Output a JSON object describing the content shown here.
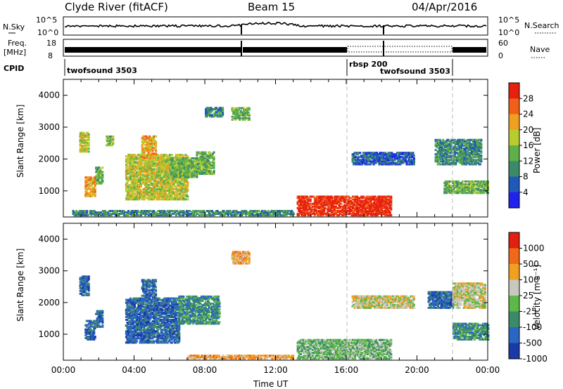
{
  "header": {
    "station": "Clyde River (fitACF)",
    "beam": "Beam 15",
    "date": "04/Apr/2016"
  },
  "top_panels": {
    "nsky_label": "N.Sky",
    "nsearch_label": "N.Search",
    "freq_label_1": "Freq.",
    "freq_label_2": "[MHz]",
    "nave_label": "Nave",
    "cpid_label": "CPID",
    "nsky_ticks": [
      "10^5",
      "10^0"
    ],
    "nsearch_ticks": [
      "10^5",
      "10^0"
    ],
    "freq_ticks": [
      "18",
      "8"
    ],
    "nave_ticks": [
      "60",
      "0"
    ]
  },
  "cpid_segments": [
    {
      "label": "twofsound 3503",
      "start_hour": 0
    },
    {
      "label": "rbsp 200",
      "start_hour": 16
    },
    {
      "label": "twofsound 3503",
      "start_hour": 18
    }
  ],
  "colors": {
    "power_scale": [
      "#2222ee",
      "#1f5ab8",
      "#3c8a6a",
      "#5fb04a",
      "#b8cc30",
      "#f0a020",
      "#f06018",
      "#e82010"
    ],
    "velocity_scale": [
      "#1a3aa8",
      "#2a66c4",
      "#3d8a6a",
      "#5cb848",
      "#c8c8c0",
      "#f0a020",
      "#f06818",
      "#e02010"
    ]
  },
  "chart_data": [
    {
      "type": "heatmap",
      "panel": "power",
      "ylabel": "Slant Range [km]",
      "ylim": [
        180,
        4500
      ],
      "yticks": [
        "1000",
        "2000",
        "3000",
        "4000"
      ],
      "xlim_hours": [
        0,
        24
      ],
      "colorbar_label": "Power [dB]",
      "colorbar_ticks": [
        "4",
        "8",
        "12",
        "16",
        "20",
        "24",
        "28"
      ],
      "regions": [
        {
          "t0": 0.9,
          "t1": 1.4,
          "r0": 2200,
          "r1": 2800,
          "level": 4
        },
        {
          "t0": 1.2,
          "t1": 1.8,
          "r0": 800,
          "r1": 1400,
          "level": 5
        },
        {
          "t0": 1.8,
          "t1": 2.2,
          "r0": 1200,
          "r1": 1700,
          "level": 3
        },
        {
          "t0": 2.4,
          "t1": 2.8,
          "r0": 2400,
          "r1": 2700,
          "level": 3
        },
        {
          "t0": 3.5,
          "t1": 7.0,
          "r0": 700,
          "r1": 2100,
          "level": 4
        },
        {
          "t0": 4.4,
          "t1": 5.2,
          "r0": 2000,
          "r1": 2700,
          "level": 5
        },
        {
          "t0": 6.0,
          "t1": 7.5,
          "r0": 1400,
          "r1": 2000,
          "level": 3
        },
        {
          "t0": 7.5,
          "t1": 8.5,
          "r0": 1500,
          "r1": 2200,
          "level": 3
        },
        {
          "t0": 8.0,
          "t1": 9.0,
          "r0": 3300,
          "r1": 3600,
          "level": 2
        },
        {
          "t0": 9.5,
          "t1": 10.5,
          "r0": 3200,
          "r1": 3600,
          "level": 3
        },
        {
          "t0": 13.2,
          "t1": 18.5,
          "r0": 200,
          "r1": 800,
          "level": 7
        },
        {
          "t0": 16.3,
          "t1": 19.8,
          "r0": 1800,
          "r1": 2200,
          "level": 1
        },
        {
          "t0": 21.0,
          "t1": 23.6,
          "r0": 1800,
          "r1": 2600,
          "level": 2
        },
        {
          "t0": 21.5,
          "t1": 24.0,
          "r0": 900,
          "r1": 1300,
          "level": 3
        },
        {
          "t0": 0.5,
          "t1": 13.0,
          "r0": 200,
          "r1": 350,
          "level": 2
        }
      ]
    },
    {
      "type": "heatmap",
      "panel": "velocity",
      "ylabel": "Slant Range [km]",
      "ylim": [
        180,
        4500
      ],
      "yticks": [
        "1000",
        "2000",
        "3000",
        "4000"
      ],
      "xlim_hours": [
        0,
        24
      ],
      "xlabel": "Time UT",
      "xticks": [
        "00:00",
        "04:00",
        "08:00",
        "12:00",
        "16:00",
        "20:00",
        "00:00"
      ],
      "colorbar_label": "Velocity [m s⁻¹]",
      "colorbar_ticks": [
        "1000",
        "500",
        "100",
        "25",
        "-25",
        "-100",
        "-500",
        "-1000"
      ],
      "regions": [
        {
          "t0": 0.9,
          "t1": 1.4,
          "r0": 2200,
          "r1": 2800,
          "level": 1
        },
        {
          "t0": 1.2,
          "t1": 1.8,
          "r0": 800,
          "r1": 1400,
          "level": 1
        },
        {
          "t0": 1.8,
          "t1": 2.2,
          "r0": 1200,
          "r1": 1700,
          "level": 1
        },
        {
          "t0": 3.5,
          "t1": 6.5,
          "r0": 700,
          "r1": 2100,
          "level": 1
        },
        {
          "t0": 4.4,
          "t1": 5.2,
          "r0": 2000,
          "r1": 2700,
          "level": 1
        },
        {
          "t0": 6.5,
          "t1": 8.8,
          "r0": 1300,
          "r1": 2200,
          "level": 2
        },
        {
          "t0": 9.5,
          "t1": 10.5,
          "r0": 3200,
          "r1": 3600,
          "level": 5
        },
        {
          "t0": 13.2,
          "t1": 18.5,
          "r0": 200,
          "r1": 800,
          "level": 3
        },
        {
          "t0": 16.3,
          "t1": 19.8,
          "r0": 1800,
          "r1": 2200,
          "level": 4
        },
        {
          "t0": 20.6,
          "t1": 22.0,
          "r0": 1800,
          "r1": 2300,
          "level": 1
        },
        {
          "t0": 22.0,
          "t1": 23.8,
          "r0": 1800,
          "r1": 2600,
          "level": 4
        },
        {
          "t0": 22.0,
          "t1": 24.0,
          "r0": 800,
          "r1": 1300,
          "level": 2
        },
        {
          "t0": 7.0,
          "t1": 13.0,
          "r0": 200,
          "r1": 300,
          "level": 5
        }
      ]
    }
  ]
}
